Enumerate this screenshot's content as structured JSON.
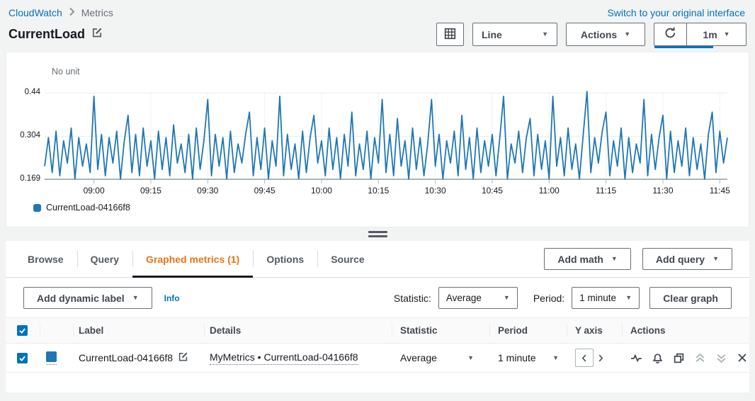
{
  "header": {
    "breadcrumb": {
      "home": "CloudWatch",
      "current": "Metrics"
    },
    "switch_link": "Switch to your original interface",
    "title": "CurrentLoad",
    "toolbar": {
      "chart_type": "Line",
      "actions": "Actions",
      "interval": "1m"
    }
  },
  "chart_data": {
    "type": "line",
    "unit_label": "No unit",
    "x_ticks": [
      "09:00",
      "09:15",
      "09:30",
      "09:45",
      "10:00",
      "10:15",
      "10:30",
      "10:45",
      "11:00",
      "11:15",
      "11:30",
      "11:45"
    ],
    "x_first_tick_index": 13,
    "x_tick_step": 15,
    "y_ticks": [
      0.169,
      0.304,
      0.44
    ],
    "ylim": [
      0.169,
      0.452
    ],
    "legend_position": "bottom",
    "series": [
      {
        "name": "CurrentLoad-04166f8",
        "color": "#1f77b4",
        "values": [
          0.21,
          0.3,
          0.19,
          0.32,
          0.18,
          0.29,
          0.22,
          0.33,
          0.17,
          0.3,
          0.21,
          0.28,
          0.19,
          0.43,
          0.2,
          0.31,
          0.18,
          0.3,
          0.22,
          0.32,
          0.17,
          0.29,
          0.37,
          0.19,
          0.31,
          0.18,
          0.33,
          0.21,
          0.29,
          0.17,
          0.32,
          0.2,
          0.3,
          0.18,
          0.34,
          0.22,
          0.28,
          0.19,
          0.31,
          0.17,
          0.33,
          0.2,
          0.29,
          0.42,
          0.18,
          0.31,
          0.21,
          0.3,
          0.17,
          0.32,
          0.19,
          0.28,
          0.22,
          0.31,
          0.38,
          0.18,
          0.3,
          0.2,
          0.33,
          0.17,
          0.29,
          0.21,
          0.43,
          0.18,
          0.31,
          0.2,
          0.28,
          0.17,
          0.32,
          0.19,
          0.3,
          0.37,
          0.22,
          0.29,
          0.18,
          0.33,
          0.2,
          0.3,
          0.17,
          0.31,
          0.21,
          0.38,
          0.18,
          0.28,
          0.2,
          0.32,
          0.17,
          0.3,
          0.22,
          0.42,
          0.19,
          0.31,
          0.18,
          0.36,
          0.21,
          0.29,
          0.17,
          0.33,
          0.2,
          0.3,
          0.18,
          0.28,
          0.42,
          0.21,
          0.31,
          0.17,
          0.29,
          0.22,
          0.32,
          0.18,
          0.37,
          0.2,
          0.3,
          0.17,
          0.33,
          0.19,
          0.29,
          0.21,
          0.31,
          0.18,
          0.3,
          0.43,
          0.17,
          0.28,
          0.22,
          0.32,
          0.19,
          0.3,
          0.36,
          0.18,
          0.31,
          0.2,
          0.29,
          0.17,
          0.43,
          0.21,
          0.3,
          0.18,
          0.33,
          0.2,
          0.28,
          0.17,
          0.31,
          0.445,
          0.19,
          0.3,
          0.22,
          0.32,
          0.38,
          0.18,
          0.29,
          0.21,
          0.33,
          0.17,
          0.3,
          0.19,
          0.28,
          0.22,
          0.42,
          0.18,
          0.31,
          0.2,
          0.3,
          0.37,
          0.17,
          0.32,
          0.19,
          0.29,
          0.21,
          0.33,
          0.18,
          0.3,
          0.2,
          0.28,
          0.17,
          0.31,
          0.38,
          0.19,
          0.32,
          0.22,
          0.3
        ]
      }
    ]
  },
  "panel": {
    "tabs": [
      {
        "label": "Browse"
      },
      {
        "label": "Query"
      },
      {
        "label": "Graphed metrics (1)"
      },
      {
        "label": "Options"
      },
      {
        "label": "Source"
      }
    ],
    "add_math": "Add math",
    "add_query": "Add query",
    "controls": {
      "add_dynamic_label": "Add dynamic label",
      "info": "Info",
      "statistic_label": "Statistic:",
      "statistic_value": "Average",
      "period_label": "Period:",
      "period_value": "1 minute",
      "clear_graph": "Clear graph"
    },
    "table": {
      "headers": {
        "label": "Label",
        "details": "Details",
        "statistic": "Statistic",
        "period": "Period",
        "y_axis": "Y axis",
        "actions": "Actions"
      },
      "row": {
        "label": "CurrentLoad-04166f8",
        "details": "MyMetrics • CurrentLoad-04166f8",
        "statistic": "Average",
        "period": "1 minute",
        "swatch_color": "#1f77b4"
      }
    }
  },
  "colors": {
    "accent_link": "#0073bb",
    "active_tab": "#ec7211",
    "line": "#1f77b4"
  }
}
